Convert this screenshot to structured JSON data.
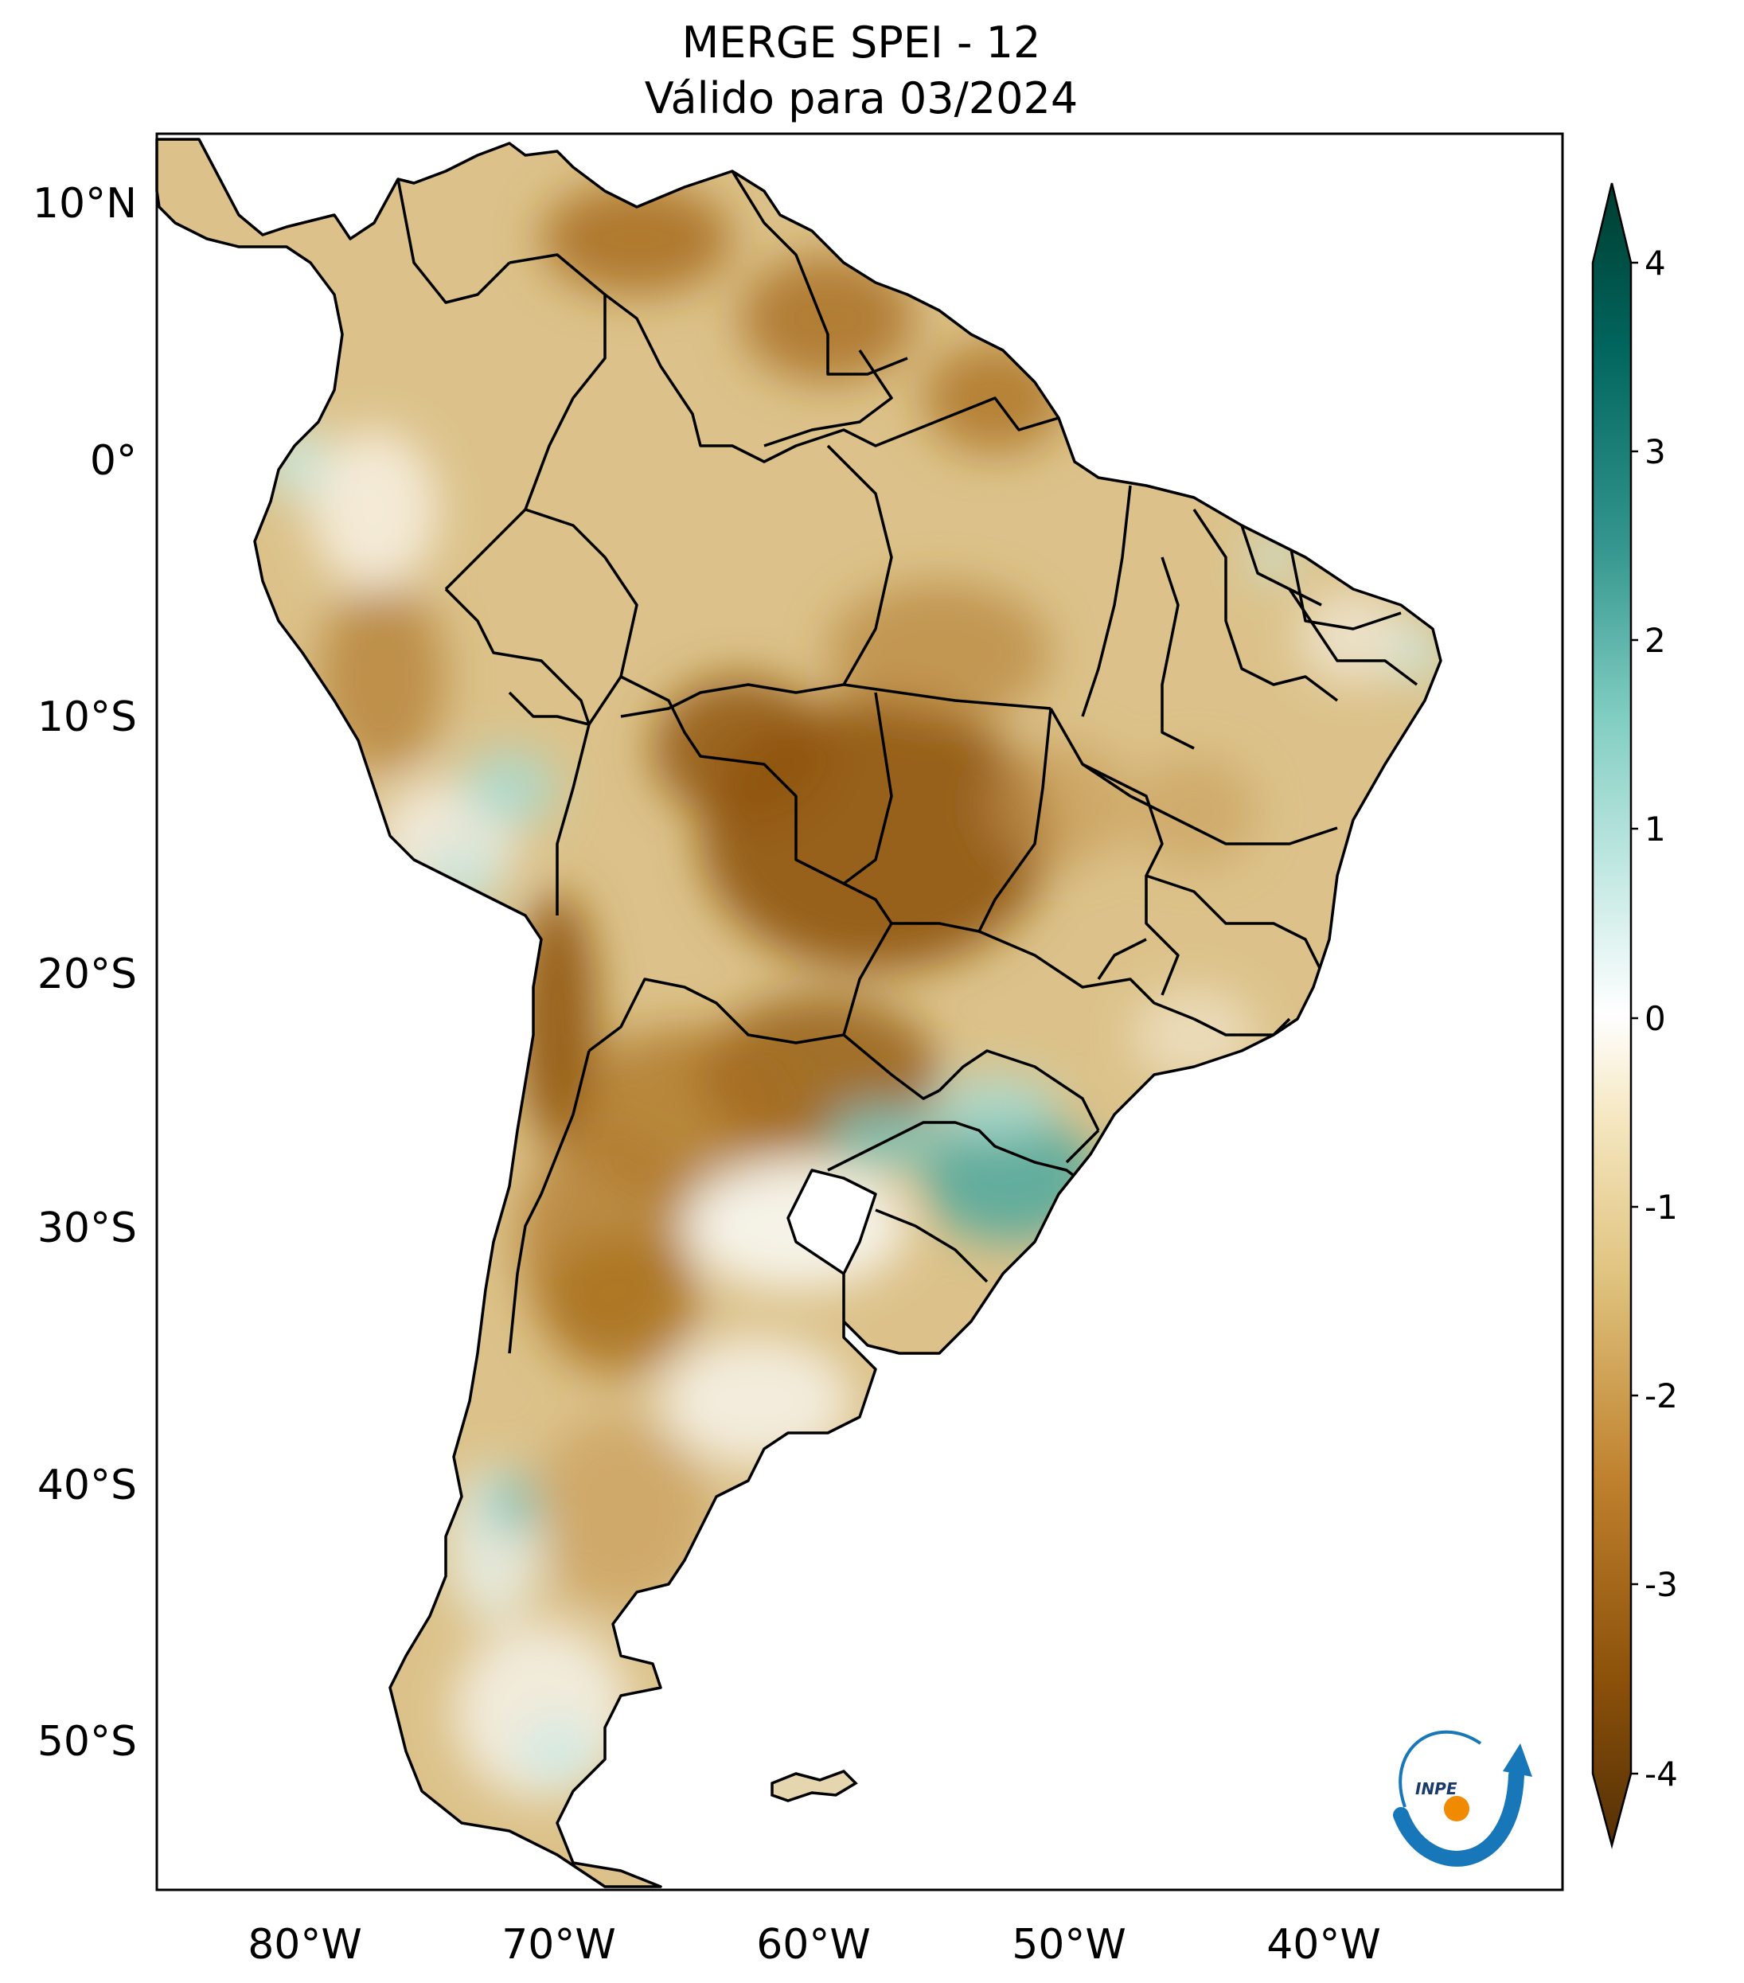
{
  "title": {
    "line1": "MERGE   SPEI - 12",
    "line2": "Válido para 03/2024"
  },
  "axes": {
    "lat_labels": [
      "10°N",
      "0°",
      "10°S",
      "20°S",
      "30°S",
      "40°S",
      "50°S"
    ],
    "lon_labels": [
      "80°W",
      "70°W",
      "60°W",
      "50°W",
      "40°W"
    ]
  },
  "colorbar": {
    "ticks": [
      "4",
      "3",
      "2",
      "1",
      "0",
      "-1",
      "-2",
      "-3",
      "-4"
    ],
    "range": [
      -4,
      4
    ],
    "colors": [
      "#543005",
      "#8c510a",
      "#bf812d",
      "#dfc27d",
      "#f6e8c3",
      "#ffffff",
      "#c7eae5",
      "#80cdc1",
      "#35978f",
      "#01665e",
      "#003c30"
    ]
  },
  "logo": {
    "text": "INPE"
  },
  "map_fill": {
    "land_base": "#dcc28a",
    "ocean": "#ffffff"
  }
}
